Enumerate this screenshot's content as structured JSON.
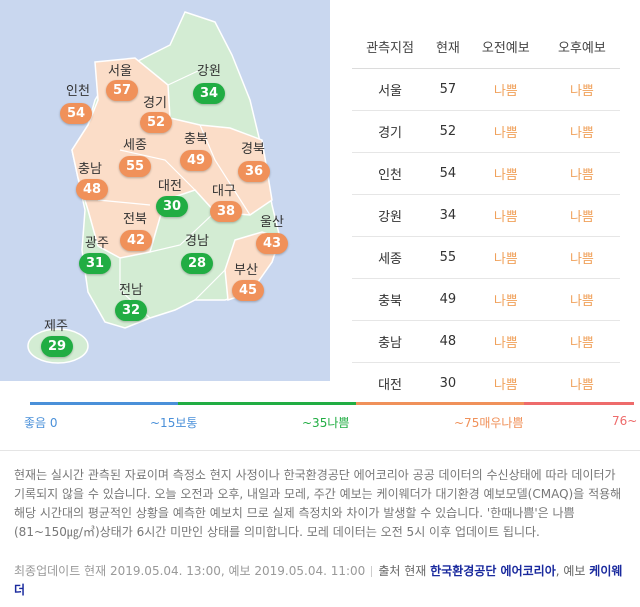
{
  "colors": {
    "good": "#4a90d9",
    "normal": "#21ad43",
    "bad": "#f0915a",
    "very_bad": "#ee6b6b",
    "sea": "#c9d7ef",
    "land_green": "#d3ecd3",
    "land_orange": "#fbddc8"
  },
  "map": {
    "regions": [
      {
        "name": "서울",
        "value": "57",
        "level": "bad"
      },
      {
        "name": "경기",
        "value": "52",
        "level": "bad"
      },
      {
        "name": "인천",
        "value": "54",
        "level": "bad"
      },
      {
        "name": "강원",
        "value": "34",
        "level": "normal"
      },
      {
        "name": "세종",
        "value": "55",
        "level": "bad"
      },
      {
        "name": "충북",
        "value": "49",
        "level": "bad"
      },
      {
        "name": "경북",
        "value": "36",
        "level": "bad"
      },
      {
        "name": "충남",
        "value": "48",
        "level": "bad"
      },
      {
        "name": "대전",
        "value": "30",
        "level": "normal"
      },
      {
        "name": "대구",
        "value": "38",
        "level": "bad"
      },
      {
        "name": "전북",
        "value": "42",
        "level": "bad"
      },
      {
        "name": "울산",
        "value": "43",
        "level": "bad"
      },
      {
        "name": "광주",
        "value": "31",
        "level": "normal"
      },
      {
        "name": "경남",
        "value": "28",
        "level": "normal"
      },
      {
        "name": "부산",
        "value": "45",
        "level": "bad"
      },
      {
        "name": "전남",
        "value": "32",
        "level": "normal"
      },
      {
        "name": "제주",
        "value": "29",
        "level": "normal"
      }
    ]
  },
  "table": {
    "headers": [
      "관측지점",
      "현재",
      "오전예보",
      "오후예보"
    ],
    "rows": [
      {
        "site": "서울",
        "current": "57",
        "am": "나쁨",
        "pm": "나쁨"
      },
      {
        "site": "경기",
        "current": "52",
        "am": "나쁨",
        "pm": "나쁨"
      },
      {
        "site": "인천",
        "current": "54",
        "am": "나쁨",
        "pm": "나쁨"
      },
      {
        "site": "강원",
        "current": "34",
        "am": "나쁨",
        "pm": "나쁨"
      },
      {
        "site": "세종",
        "current": "55",
        "am": "나쁨",
        "pm": "나쁨"
      },
      {
        "site": "충북",
        "current": "49",
        "am": "나쁨",
        "pm": "나쁨"
      },
      {
        "site": "충남",
        "current": "48",
        "am": "나쁨",
        "pm": "나쁨"
      },
      {
        "site": "대전",
        "current": "30",
        "am": "나쁨",
        "pm": "나쁨"
      }
    ]
  },
  "legend": {
    "good": "좋음 0",
    "normal": "~15보통",
    "bad": "~35나쁨",
    "very_bad": "~75매우나쁨",
    "max": "76~"
  },
  "notice": "현재는 실시간 관측된 자료이며 측정소 현지 사정이나 한국환경공단 에어코리아 공공 데이터의 수신상태에 따라 데이터가 기록되지 않을 수 있습니다. 오늘 오전과 오후, 내일과 모레, 주간 예보는 케이웨더가 대기환경 예보모델(CMAQ)을 적용해 해당 시간대의 평균적인 상황을 예측한 예보치 므로 실제 측정치와 차이가 발생할 수 있습니다. '한때나쁨'은 나쁨(81~150㎍/㎥)상태가 6시간 미만인 상태를 의미합니다. 모레 데이터는 오전 5시 이후 업데이트 됩니다.",
  "footer": {
    "update": "최종업데이트 현재 2019.05.04. 13:00, 예보 2019.05.04. 11:00",
    "source_prefix": "출처 현재",
    "source_current": "한국환경공단 에어코리아",
    "source_mid": ", 예보",
    "source_forecast": "케이웨더"
  }
}
